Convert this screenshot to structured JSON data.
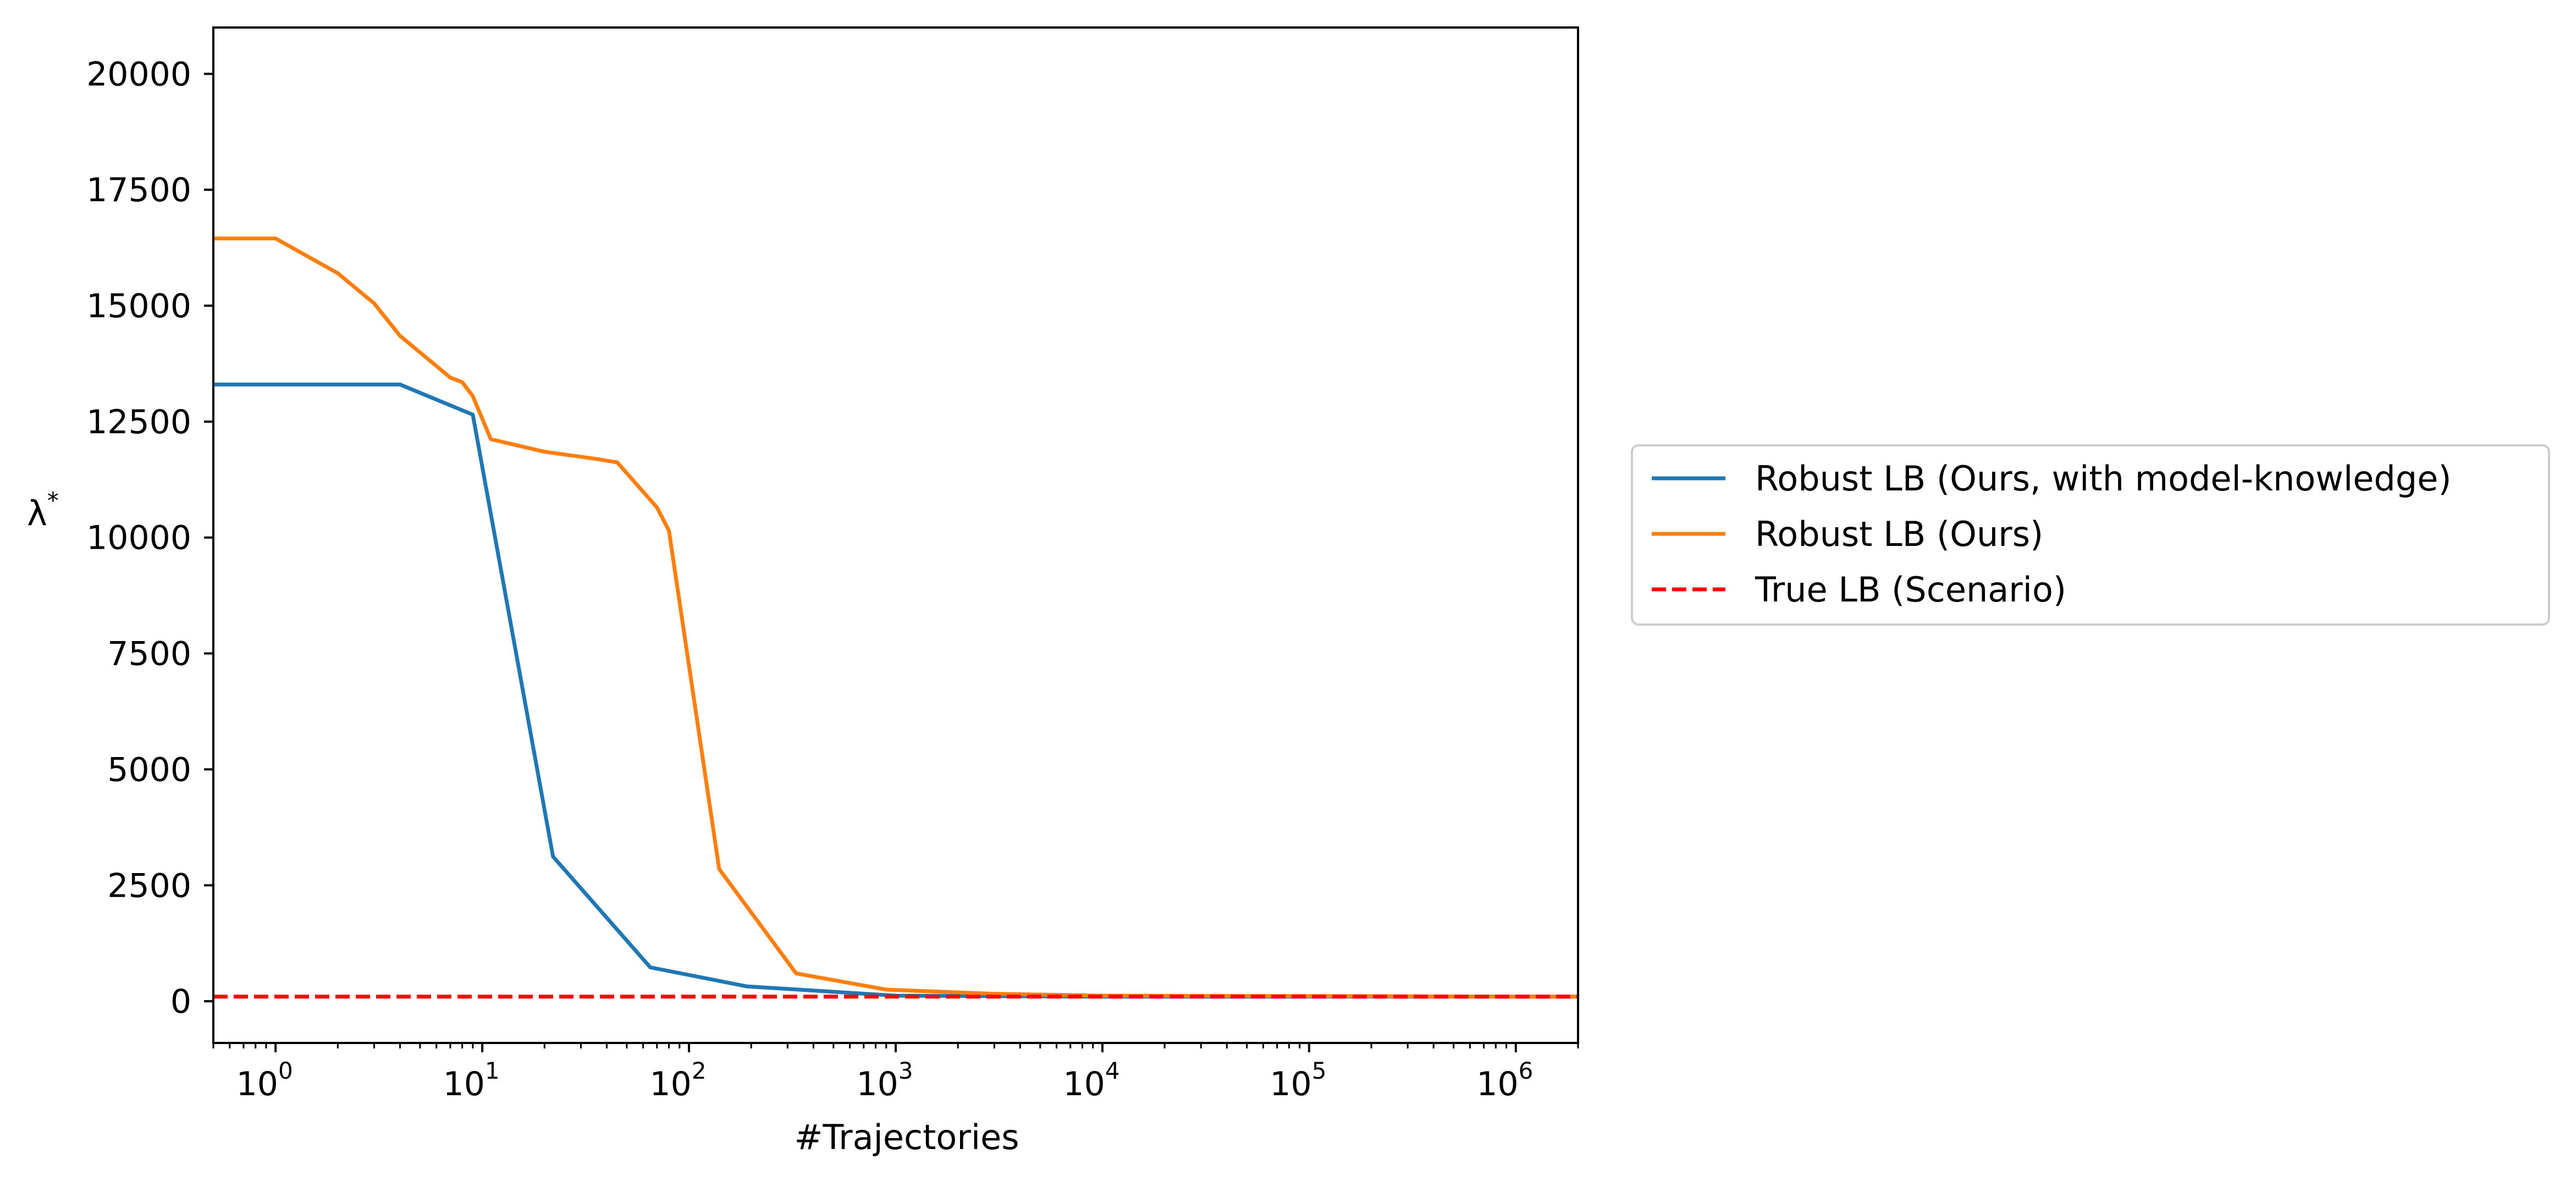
{
  "chart_data": {
    "type": "line",
    "title": "",
    "xlabel": "#Trajectories",
    "ylabel": "λ*",
    "ylabel_base": "λ",
    "ylabel_sup": "*",
    "xscale": "log",
    "xlim": [
      0.5,
      2000000
    ],
    "ylim": [
      -900,
      21000
    ],
    "grid": false,
    "legend_position": "right",
    "x_ticks": [
      {
        "value": 1,
        "base": "10",
        "exp": "0"
      },
      {
        "value": 10,
        "base": "10",
        "exp": "1"
      },
      {
        "value": 100,
        "base": "10",
        "exp": "2"
      },
      {
        "value": 1000,
        "base": "10",
        "exp": "3"
      },
      {
        "value": 10000,
        "base": "10",
        "exp": "4"
      },
      {
        "value": 100000,
        "base": "10",
        "exp": "5"
      },
      {
        "value": 1000000,
        "base": "10",
        "exp": "6"
      }
    ],
    "y_ticks": [
      {
        "value": 0,
        "label": "0"
      },
      {
        "value": 2500,
        "label": "2500"
      },
      {
        "value": 5000,
        "label": "5000"
      },
      {
        "value": 7500,
        "label": "7500"
      },
      {
        "value": 10000,
        "label": "10000"
      },
      {
        "value": 12500,
        "label": "12500"
      },
      {
        "value": 15000,
        "label": "15000"
      },
      {
        "value": 17500,
        "label": "17500"
      },
      {
        "value": 20000,
        "label": "20000"
      }
    ],
    "series": [
      {
        "name": "Robust LB (Ours, with model-knowledge)",
        "color": "#1f77b4",
        "dash": "solid",
        "points": [
          [
            0.5,
            13300
          ],
          [
            1,
            13300
          ],
          [
            2,
            13300
          ],
          [
            4,
            13300
          ],
          [
            9,
            12650
          ],
          [
            22,
            3120
          ],
          [
            65,
            730
          ],
          [
            190,
            320
          ],
          [
            1000,
            120
          ],
          [
            10000,
            100
          ],
          [
            100000,
            100
          ],
          [
            1000000,
            100
          ],
          [
            2000000,
            100
          ]
        ]
      },
      {
        "name": "Robust LB (Ours)",
        "color": "#ff7f0e",
        "dash": "solid",
        "points": [
          [
            0.5,
            16450
          ],
          [
            1,
            16450
          ],
          [
            2,
            15700
          ],
          [
            3,
            15050
          ],
          [
            4,
            14350
          ],
          [
            6,
            13700
          ],
          [
            7,
            13450
          ],
          [
            8,
            13350
          ],
          [
            9,
            13050
          ],
          [
            11,
            12120
          ],
          [
            20,
            11850
          ],
          [
            35,
            11700
          ],
          [
            45,
            11620
          ],
          [
            70,
            10650
          ],
          [
            80,
            10150
          ],
          [
            140,
            2850
          ],
          [
            330,
            600
          ],
          [
            900,
            250
          ],
          [
            3000,
            160
          ],
          [
            10000,
            120
          ],
          [
            100000,
            110
          ],
          [
            1000000,
            100
          ],
          [
            2000000,
            100
          ]
        ]
      },
      {
        "name": "True LB (Scenario)",
        "color": "#ff0000",
        "dash": "dashed",
        "points": [
          [
            0.5,
            100
          ],
          [
            2000000,
            100
          ]
        ]
      }
    ]
  }
}
